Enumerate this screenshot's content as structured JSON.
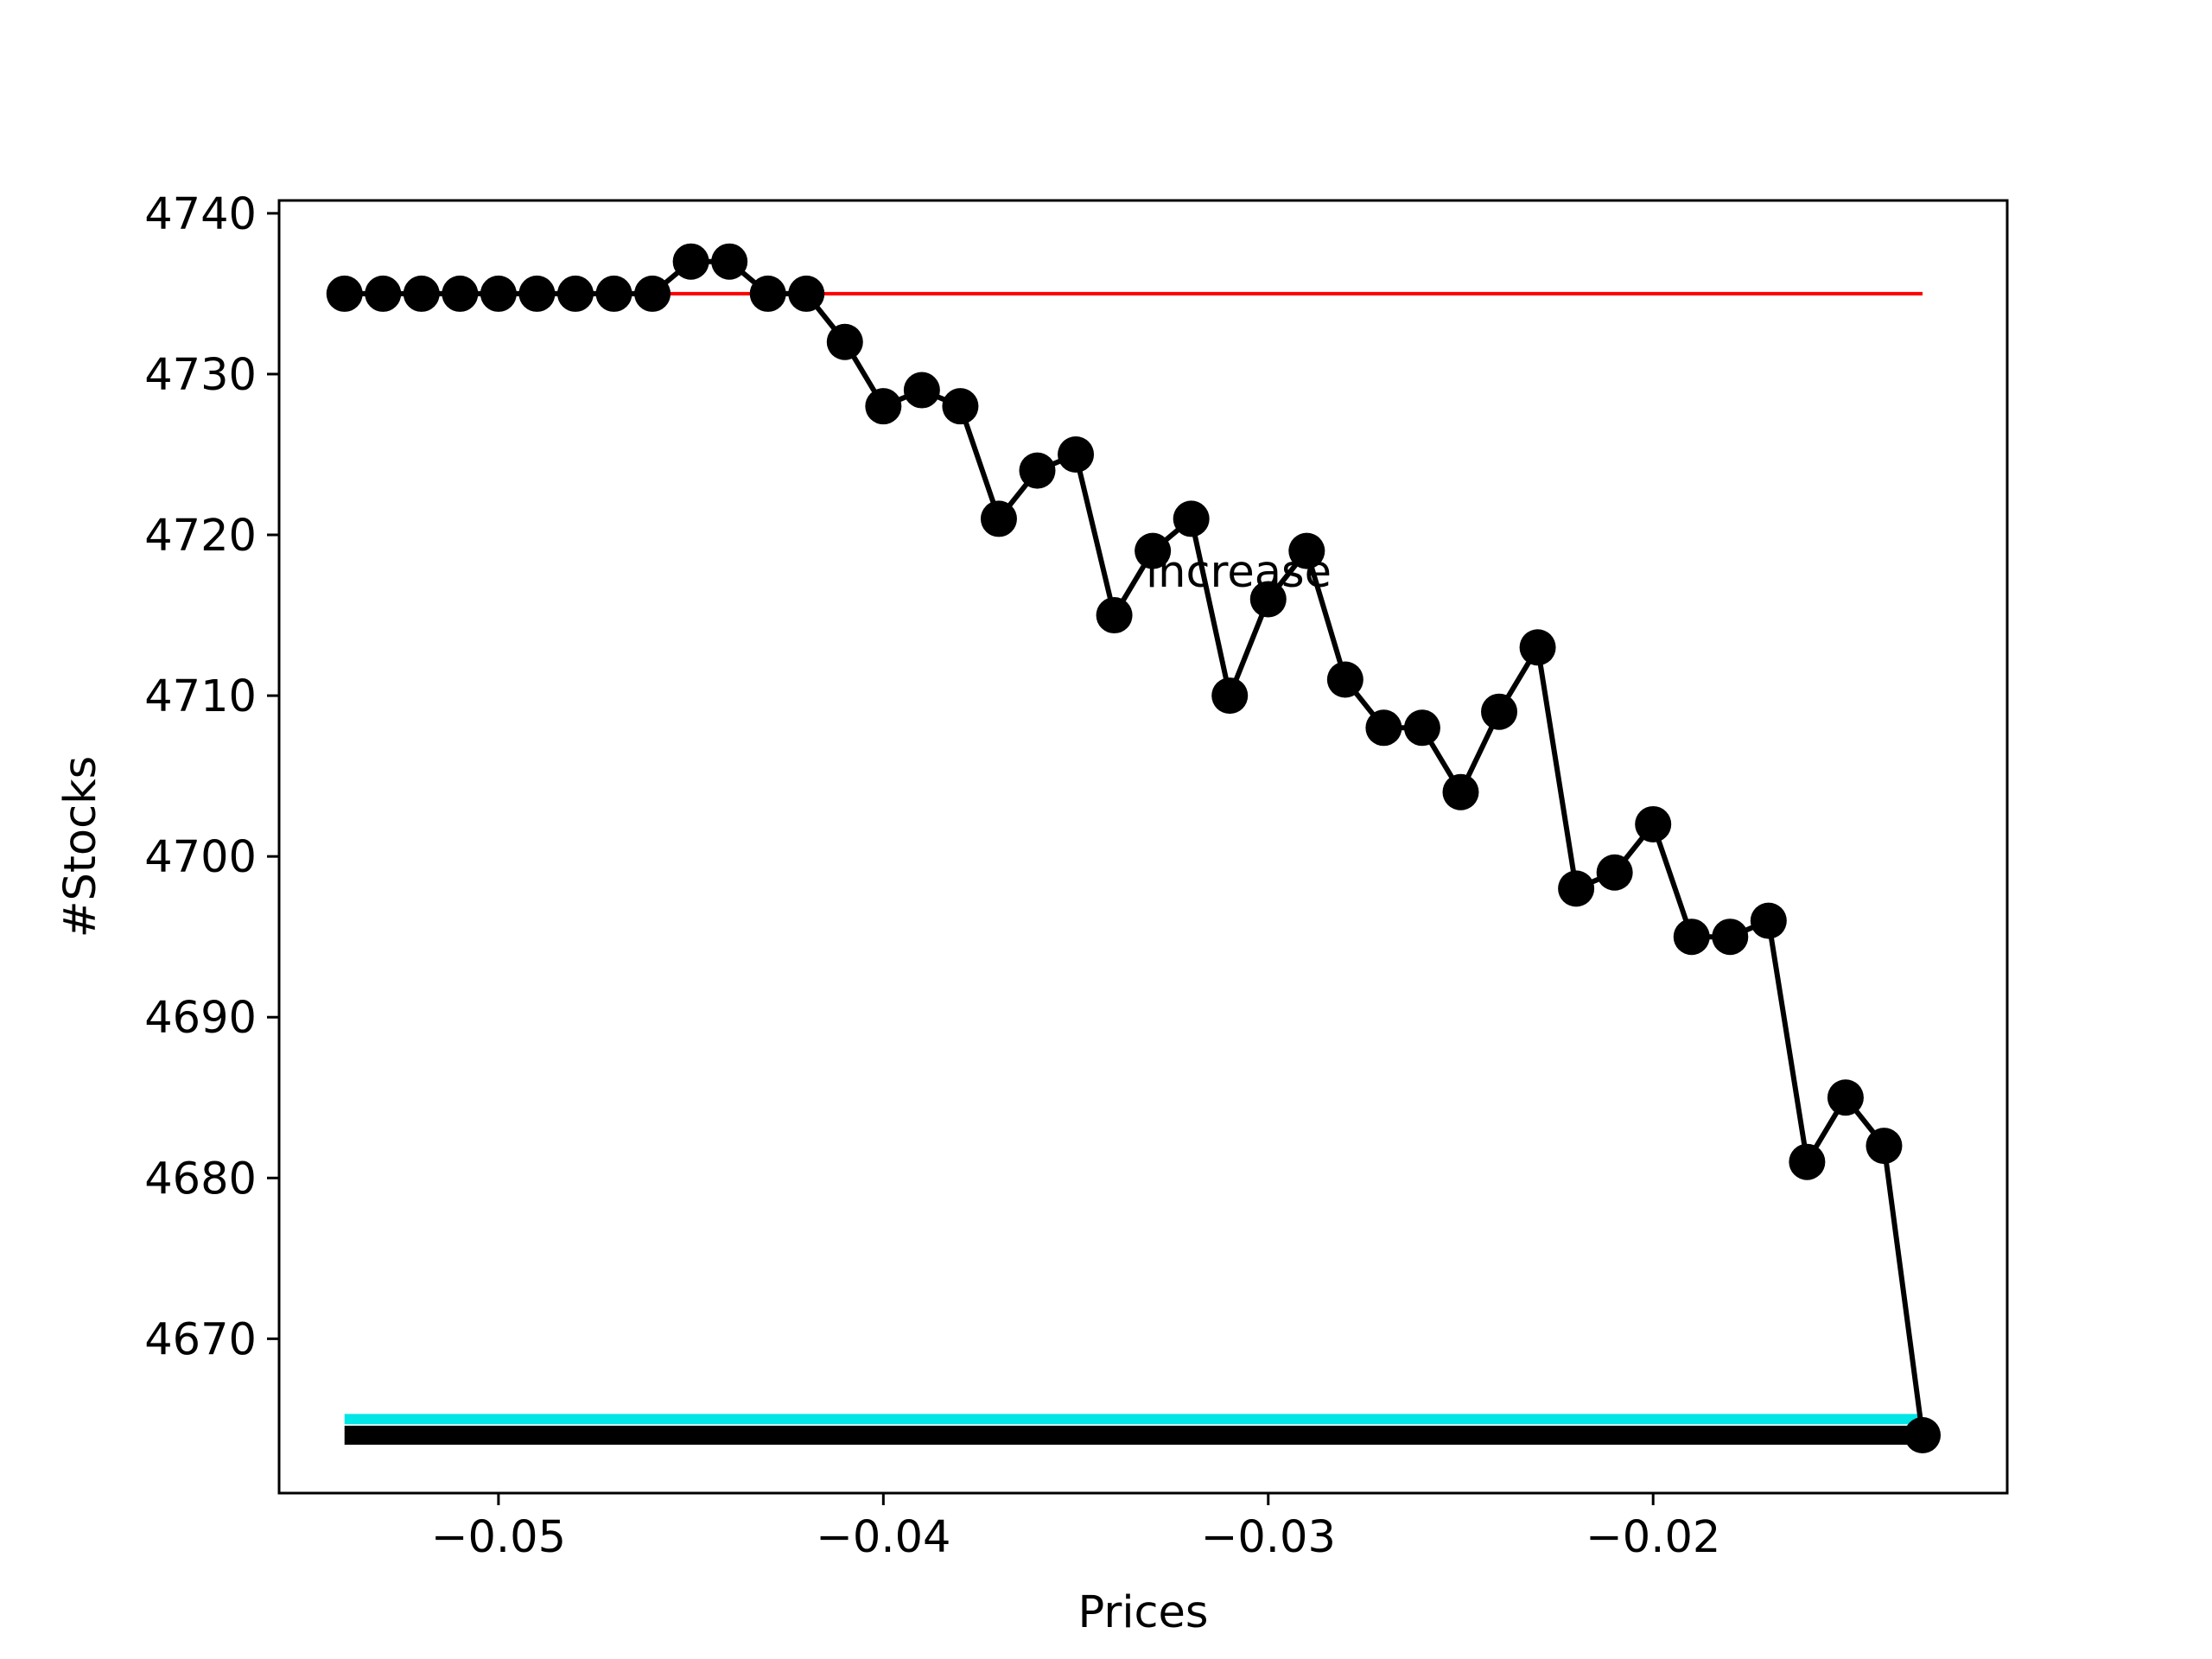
{
  "chart_data": {
    "type": "line",
    "xlabel": "Prices",
    "ylabel": "#Stocks",
    "annotation": "increase",
    "xlim": [
      -0.0557,
      -0.0108
    ],
    "ylim": [
      4660.4,
      4740.8
    ],
    "xticks": [
      -0.05,
      -0.04,
      -0.03,
      -0.02
    ],
    "xtick_labels": [
      "−0.05",
      "−0.04",
      "−0.03",
      "−0.02"
    ],
    "yticks": [
      4670,
      4680,
      4690,
      4700,
      4710,
      4720,
      4730,
      4740
    ],
    "ytick_labels": [
      "4670",
      "4680",
      "4690",
      "4700",
      "4710",
      "4720",
      "4730",
      "4740"
    ],
    "grid": false,
    "series": [
      {
        "color": "#000000",
        "marker": "circle",
        "x": [
          -0.054,
          -0.053,
          -0.052,
          -0.051,
          -0.05,
          -0.049,
          -0.048,
          -0.047,
          -0.046,
          -0.045,
          -0.044,
          -0.043,
          -0.042,
          -0.041,
          -0.04,
          -0.039,
          -0.038,
          -0.037,
          -0.036,
          -0.035,
          -0.034,
          -0.033,
          -0.032,
          -0.031,
          -0.03,
          -0.029,
          -0.028,
          -0.027,
          -0.026,
          -0.025,
          -0.024,
          -0.023,
          -0.022,
          -0.021,
          -0.02,
          -0.019,
          -0.018,
          -0.017,
          -0.016,
          -0.015,
          -0.014,
          -0.013
        ],
        "y": [
          4735,
          4735,
          4735,
          4735,
          4735,
          4735,
          4735,
          4735,
          4735,
          4737,
          4737,
          4735,
          4735,
          4732,
          4728,
          4729,
          4728,
          4721,
          4724,
          4725,
          4715,
          4719,
          4721,
          4710,
          4716,
          4719,
          4711,
          4708,
          4708,
          4704,
          4709,
          4713,
          4698,
          4699,
          4702,
          4695,
          4695,
          4696,
          4681,
          4685,
          4682,
          4664
        ]
      }
    ],
    "hlines": [
      {
        "y": 4735,
        "x_start": -0.046,
        "x_end": -0.013,
        "color": "#ff0000"
      },
      {
        "y": 4665,
        "x_start": -0.054,
        "x_end": -0.013,
        "color": "#00e5e5"
      },
      {
        "y": 4664,
        "x_start": -0.054,
        "x_end": -0.013,
        "color": "#000000"
      }
    ]
  }
}
